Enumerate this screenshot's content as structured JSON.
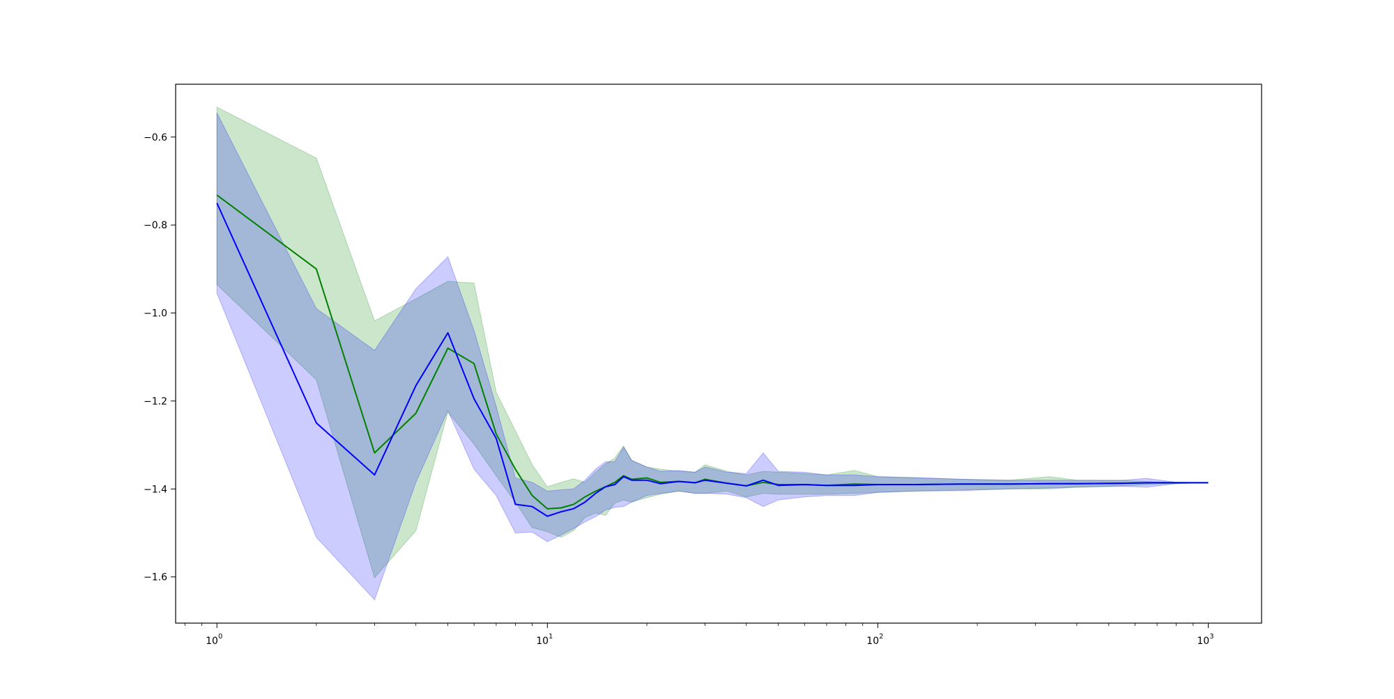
{
  "chart_data": {
    "type": "line",
    "title": "",
    "xlabel": "",
    "ylabel": "",
    "x_scale": "log",
    "xlim": [
      0.75,
      1450
    ],
    "ylim": [
      -1.705,
      -0.48
    ],
    "grid": false,
    "legend": "none",
    "x_tick_labels": [
      {
        "value": 1,
        "base": "10",
        "exp": "0"
      },
      {
        "value": 10,
        "base": "10",
        "exp": "1"
      },
      {
        "value": 100,
        "base": "10",
        "exp": "2"
      },
      {
        "value": 1000,
        "base": "10",
        "exp": "3"
      }
    ],
    "y_ticks": [
      {
        "value": -0.6,
        "label": "−0.6"
      },
      {
        "value": -0.8,
        "label": "−0.8"
      },
      {
        "value": -1.0,
        "label": "−1.0"
      },
      {
        "value": -1.2,
        "label": "−1.2"
      },
      {
        "value": -1.4,
        "label": "−1.4"
      },
      {
        "value": -1.6,
        "label": "−1.6"
      }
    ],
    "series": [
      {
        "color": "#008000",
        "band_color": "#008000",
        "band_opacity": 0.2,
        "points": [
          [
            1,
            -0.732,
            -0.532,
            -0.935
          ],
          [
            2,
            -0.9,
            -0.648,
            -1.152
          ],
          [
            3,
            -1.318,
            -1.018,
            -1.602
          ],
          [
            4,
            -1.228,
            -0.968,
            -1.495
          ],
          [
            5,
            -1.08,
            -0.928,
            -1.225
          ],
          [
            6,
            -1.115,
            -0.932,
            -1.298
          ],
          [
            7,
            -1.275,
            -1.18,
            -1.37
          ],
          [
            8,
            -1.355,
            -1.268,
            -1.43
          ],
          [
            9,
            -1.415,
            -1.345,
            -1.488
          ],
          [
            10,
            -1.445,
            -1.395,
            -1.497
          ],
          [
            11,
            -1.443,
            -1.385,
            -1.51
          ],
          [
            12,
            -1.435,
            -1.377,
            -1.495
          ],
          [
            13,
            -1.418,
            -1.385,
            -1.465
          ],
          [
            14,
            -1.405,
            -1.362,
            -1.455
          ],
          [
            15,
            -1.395,
            -1.343,
            -1.46
          ],
          [
            16,
            -1.385,
            -1.33,
            -1.432
          ],
          [
            17,
            -1.37,
            -1.302,
            -1.425
          ],
          [
            18,
            -1.378,
            -1.335,
            -1.43
          ],
          [
            20,
            -1.375,
            -1.35,
            -1.42
          ],
          [
            22,
            -1.385,
            -1.355,
            -1.412
          ],
          [
            25,
            -1.383,
            -1.36,
            -1.405
          ],
          [
            28,
            -1.386,
            -1.362,
            -1.41
          ],
          [
            30,
            -1.378,
            -1.345,
            -1.41
          ],
          [
            35,
            -1.387,
            -1.36,
            -1.405
          ],
          [
            40,
            -1.393,
            -1.368,
            -1.418
          ],
          [
            45,
            -1.385,
            -1.36,
            -1.41
          ],
          [
            50,
            -1.39,
            -1.362,
            -1.412
          ],
          [
            60,
            -1.39,
            -1.365,
            -1.412
          ],
          [
            70,
            -1.392,
            -1.368,
            -1.412
          ],
          [
            85,
            -1.389,
            -1.358,
            -1.41
          ],
          [
            100,
            -1.39,
            -1.372,
            -1.408
          ],
          [
            130,
            -1.39,
            -1.375,
            -1.405
          ],
          [
            180,
            -1.389,
            -1.378,
            -1.402
          ],
          [
            250,
            -1.389,
            -1.38,
            -1.4
          ],
          [
            330,
            -1.388,
            -1.372,
            -1.4
          ],
          [
            400,
            -1.388,
            -1.38,
            -1.396
          ],
          [
            550,
            -1.387,
            -1.381,
            -1.393
          ],
          [
            700,
            -1.386,
            -1.384,
            -1.389
          ],
          [
            1000,
            -1.386,
            -1.386,
            -1.386
          ]
        ]
      },
      {
        "color": "#0000ff",
        "band_color": "#0000ff",
        "band_opacity": 0.2,
        "points": [
          [
            1,
            -0.75,
            -0.545,
            -0.955
          ],
          [
            2,
            -1.25,
            -0.99,
            -1.51
          ],
          [
            3,
            -1.368,
            -1.085,
            -1.652
          ],
          [
            4,
            -1.165,
            -0.945,
            -1.385
          ],
          [
            5,
            -1.045,
            -0.872,
            -1.222
          ],
          [
            6,
            -1.195,
            -1.04,
            -1.355
          ],
          [
            7,
            -1.285,
            -1.212,
            -1.415
          ],
          [
            8,
            -1.435,
            -1.375,
            -1.5
          ],
          [
            9,
            -1.44,
            -1.385,
            -1.498
          ],
          [
            10,
            -1.462,
            -1.405,
            -1.52
          ],
          [
            11,
            -1.452,
            -1.402,
            -1.505
          ],
          [
            12,
            -1.445,
            -1.4,
            -1.49
          ],
          [
            13,
            -1.43,
            -1.38,
            -1.475
          ],
          [
            14,
            -1.41,
            -1.355,
            -1.463
          ],
          [
            15,
            -1.395,
            -1.338,
            -1.448
          ],
          [
            16,
            -1.39,
            -1.338,
            -1.442
          ],
          [
            17,
            -1.372,
            -1.305,
            -1.44
          ],
          [
            18,
            -1.38,
            -1.335,
            -1.43
          ],
          [
            20,
            -1.38,
            -1.35,
            -1.415
          ],
          [
            22,
            -1.388,
            -1.36,
            -1.41
          ],
          [
            25,
            -1.383,
            -1.358,
            -1.405
          ],
          [
            28,
            -1.386,
            -1.362,
            -1.41
          ],
          [
            30,
            -1.38,
            -1.35,
            -1.41
          ],
          [
            35,
            -1.387,
            -1.362,
            -1.412
          ],
          [
            40,
            -1.393,
            -1.365,
            -1.42
          ],
          [
            45,
            -1.38,
            -1.318,
            -1.44
          ],
          [
            50,
            -1.392,
            -1.36,
            -1.425
          ],
          [
            60,
            -1.39,
            -1.362,
            -1.418
          ],
          [
            70,
            -1.392,
            -1.368,
            -1.415
          ],
          [
            85,
            -1.392,
            -1.368,
            -1.415
          ],
          [
            100,
            -1.39,
            -1.372,
            -1.408
          ],
          [
            130,
            -1.39,
            -1.374,
            -1.405
          ],
          [
            180,
            -1.389,
            -1.378,
            -1.404
          ],
          [
            250,
            -1.389,
            -1.38,
            -1.4
          ],
          [
            330,
            -1.388,
            -1.38,
            -1.398
          ],
          [
            400,
            -1.388,
            -1.38,
            -1.396
          ],
          [
            550,
            -1.387,
            -1.38,
            -1.394
          ],
          [
            650,
            -1.386,
            -1.376,
            -1.396
          ],
          [
            800,
            -1.386,
            -1.385,
            -1.388
          ],
          [
            1000,
            -1.386,
            -1.386,
            -1.386
          ]
        ]
      }
    ]
  }
}
